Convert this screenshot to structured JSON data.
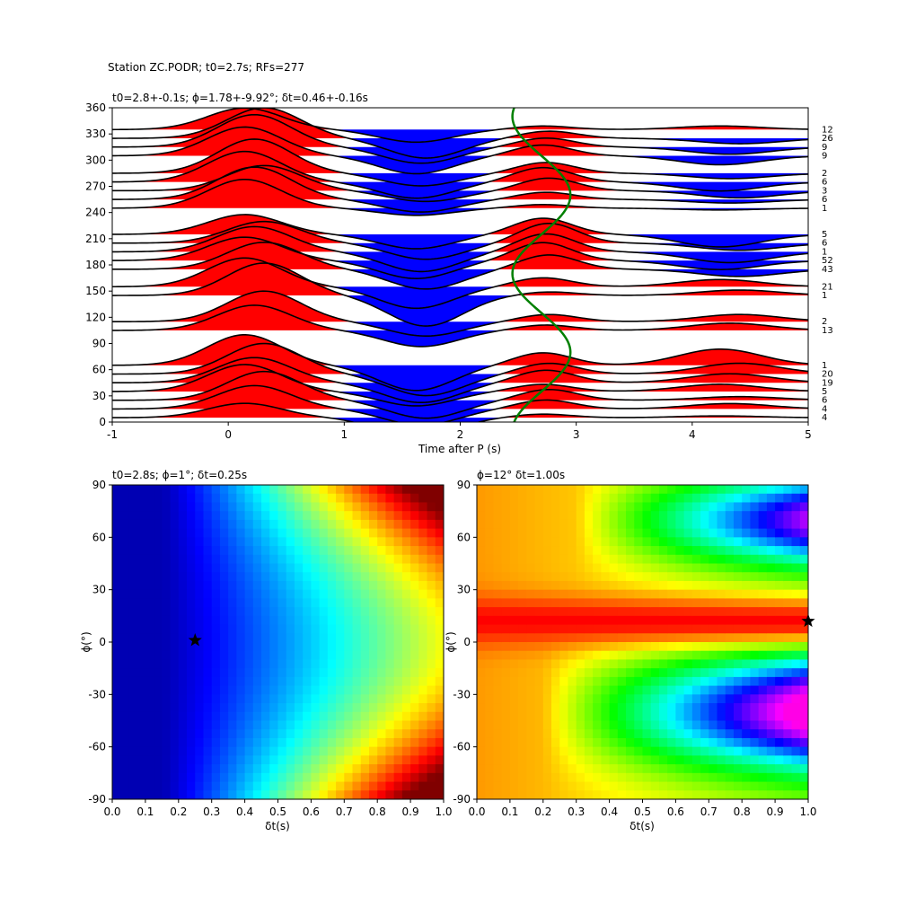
{
  "figure": {
    "suptitle": "Station ZC.PODR; t0=2.7s; RFs=277"
  },
  "chart_data": [
    {
      "type": "line",
      "name": "rf-backazimuth-gather",
      "title": "t0=2.8+-0.1s; ϕ=1.78+-9.92°; δt=0.46+-0.16s",
      "xlabel": "Time after P (s)",
      "ylabel": "",
      "xlim": [
        -1,
        5
      ],
      "ylim": [
        0,
        360
      ],
      "xticks": [
        -1,
        0,
        1,
        2,
        3,
        4,
        5
      ],
      "yticks": [
        0,
        30,
        60,
        90,
        120,
        150,
        180,
        210,
        240,
        270,
        300,
        330,
        360
      ],
      "fill_positive_color": "#ff0000",
      "fill_negative_color": "#0000ff",
      "trace_color": "#000000",
      "predicted_curve_color": "#008000",
      "predicted_curve": {
        "t0": 2.7,
        "amplitude": 0.25,
        "period_deg": 180,
        "phase_deg": 10
      },
      "bins": [
        {
          "baz": 5,
          "count": "4",
          "a0": 0.4,
          "a1": -0.55,
          "a2": 0.1,
          "a3": 0.05
        },
        {
          "baz": 15,
          "count": "4",
          "a0": 0.65,
          "a1": -0.45,
          "a2": 0.25,
          "a3": 0.15
        },
        {
          "baz": 25,
          "count": "6",
          "a0": 0.8,
          "a1": -0.5,
          "a2": 0.3,
          "a3": 0.1
        },
        {
          "baz": 35,
          "count": "5",
          "a0": 0.75,
          "a1": -0.4,
          "a2": 0.2,
          "a3": 0.2
        },
        {
          "baz": 45,
          "count": "19",
          "a0": 0.7,
          "a1": -0.55,
          "a2": 0.35,
          "a3": 0.25
        },
        {
          "baz": 55,
          "count": "20",
          "a0": 0.85,
          "a1": -0.6,
          "a2": 0.3,
          "a3": 0.3
        },
        {
          "baz": 65,
          "count": "1",
          "a0": 0.85,
          "a1": -0.7,
          "a2": 0.35,
          "a3": 0.45
        },
        {
          "baz": 105,
          "count": "13",
          "a0": 0.7,
          "a1": -0.45,
          "a2": 0.15,
          "a3": 0.2
        },
        {
          "baz": 115,
          "count": "2",
          "a0": 0.85,
          "a1": -0.4,
          "a2": 0.2,
          "a3": 0.2
        },
        {
          "baz": 145,
          "count": "1",
          "a0": 0.9,
          "a1": -0.85,
          "a2": 0.1,
          "a3": 0.15
        },
        {
          "baz": 155,
          "count": "21",
          "a0": 0.8,
          "a1": -0.6,
          "a2": 0.25,
          "a3": 0.2
        },
        {
          "baz": 175,
          "count": "43",
          "a0": 0.75,
          "a1": -0.55,
          "a2": 0.4,
          "a3": -0.2
        },
        {
          "baz": 185,
          "count": "52",
          "a0": 0.65,
          "a1": -0.5,
          "a2": 0.5,
          "a3": -0.25
        },
        {
          "baz": 195,
          "count": "1",
          "a0": 0.7,
          "a1": -0.55,
          "a2": 0.5,
          "a3": -0.3
        },
        {
          "baz": 205,
          "count": "6",
          "a0": 0.6,
          "a1": -0.45,
          "a2": 0.55,
          "a3": -0.2
        },
        {
          "baz": 215,
          "count": "5",
          "a0": 0.55,
          "a1": -0.4,
          "a2": 0.45,
          "a3": -0.35
        },
        {
          "baz": 245,
          "count": "1",
          "a0": 0.8,
          "a1": -0.2,
          "a2": 0.1,
          "a3": -0.05
        },
        {
          "baz": 255,
          "count": "6",
          "a0": 0.9,
          "a1": -0.35,
          "a2": 0.2,
          "a3": -0.1
        },
        {
          "baz": 265,
          "count": "3",
          "a0": 0.7,
          "a1": -0.3,
          "a2": 0.35,
          "a3": -0.2
        },
        {
          "baz": 275,
          "count": "6",
          "a0": 0.85,
          "a1": -0.45,
          "a2": 0.4,
          "a3": -0.25
        },
        {
          "baz": 285,
          "count": "2",
          "a0": 0.95,
          "a1": -0.35,
          "a2": 0.3,
          "a3": -0.15
        },
        {
          "baz": 305,
          "count": "9",
          "a0": 0.8,
          "a1": -0.5,
          "a2": 0.3,
          "a3": -0.25
        },
        {
          "baz": 315,
          "count": "9",
          "a0": 0.9,
          "a1": -0.45,
          "a2": 0.25,
          "a3": -0.2
        },
        {
          "baz": 325,
          "count": "26",
          "a0": 0.85,
          "a1": -0.55,
          "a2": 0.2,
          "a3": -0.15
        },
        {
          "baz": 335,
          "count": "12",
          "a0": 0.6,
          "a1": -0.35,
          "a2": 0.1,
          "a3": 0.1
        }
      ]
    },
    {
      "type": "heatmap",
      "name": "grid-search-left",
      "title": "t0=2.8s; ϕ=1°; δt=0.25s",
      "xlabel": "δt(s)",
      "ylabel": "ϕ(°)",
      "xlim": [
        0.0,
        1.0
      ],
      "ylim": [
        -90,
        90
      ],
      "xticks": [
        "0.0",
        "0.1",
        "0.2",
        "0.3",
        "0.4",
        "0.5",
        "0.6",
        "0.7",
        "0.8",
        "0.9",
        "1.0"
      ],
      "yticks": [
        -90,
        -60,
        -30,
        0,
        30,
        60,
        90
      ],
      "colormap": "jet",
      "best_fit": {
        "dt": 0.25,
        "phi": 1
      }
    },
    {
      "type": "heatmap",
      "name": "grid-search-right",
      "title": "ϕ=12° δt=1.00s",
      "xlabel": "δt(s)",
      "ylabel": "ϕ(°)",
      "xlim": [
        0.0,
        1.0
      ],
      "ylim": [
        -90,
        90
      ],
      "xticks": [
        "0.0",
        "0.1",
        "0.2",
        "0.3",
        "0.4",
        "0.5",
        "0.6",
        "0.7",
        "0.8",
        "0.9",
        "1.0"
      ],
      "yticks": [
        -90,
        -60,
        -30,
        0,
        30,
        60,
        90
      ],
      "colormap": "hsv",
      "best_fit": {
        "dt": 1.0,
        "phi": 12
      }
    }
  ]
}
